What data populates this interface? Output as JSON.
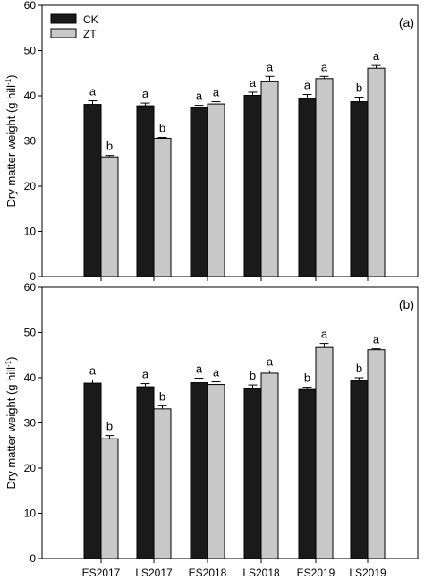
{
  "colors": {
    "CK": "#1a1a1a",
    "ZT": "#c8c8c8"
  },
  "chart_data": [
    {
      "type": "bar",
      "panel_label": "(a)",
      "ylabel_main": "Dry matter weight (g hill",
      "ylabel_sup": "-1",
      "ylabel_close": ")",
      "ylim": [
        0,
        60
      ],
      "yticks": [
        "0",
        "10",
        "20",
        "30",
        "40",
        "50",
        "60"
      ],
      "legend": {
        "placement": "top-left",
        "entries": [
          "CK",
          "ZT"
        ]
      },
      "categories": [
        "ES2017",
        "LS2017",
        "ES2018",
        "LS2018",
        "ES2019",
        "LS2019"
      ],
      "series": [
        {
          "name": "CK",
          "values": [
            38.1,
            37.8,
            37.4,
            40.1,
            39.3,
            38.7
          ],
          "errors": [
            0.8,
            0.6,
            0.5,
            0.7,
            1.0,
            1.0
          ],
          "letters": [
            "a",
            "a",
            "a",
            "a",
            "a",
            "b"
          ]
        },
        {
          "name": "ZT",
          "values": [
            26.5,
            30.6,
            38.2,
            43.1,
            43.8,
            46.1
          ],
          "errors": [
            0.3,
            0.2,
            0.5,
            1.2,
            0.5,
            0.6
          ],
          "letters": [
            "b",
            "b",
            "a",
            "a",
            "a",
            "a"
          ]
        }
      ]
    },
    {
      "type": "bar",
      "panel_label": "(b)",
      "ylabel_main": "Dry matter weight (g hill",
      "ylabel_sup": "-1",
      "ylabel_close": ")",
      "ylim": [
        0,
        60
      ],
      "yticks": [
        "0",
        "10",
        "20",
        "30",
        "40",
        "50",
        "60"
      ],
      "xtick_labels": [
        "ES2017",
        "LS2017",
        "ES2018",
        "LS2018",
        "ES2019",
        "LS2019"
      ],
      "categories": [
        "ES2017",
        "LS2017",
        "ES2018",
        "LS2018",
        "ES2019",
        "LS2019"
      ],
      "series": [
        {
          "name": "CK",
          "values": [
            38.8,
            38.0,
            38.9,
            37.6,
            37.4,
            39.4
          ],
          "errors": [
            0.7,
            0.7,
            1.0,
            0.8,
            0.5,
            0.6
          ],
          "letters": [
            "a",
            "a",
            "a",
            "b",
            "b",
            "b"
          ]
        },
        {
          "name": "ZT",
          "values": [
            26.5,
            33.1,
            38.5,
            41.0,
            46.7,
            46.2
          ],
          "errors": [
            0.7,
            0.7,
            0.6,
            0.5,
            0.9,
            0.2
          ],
          "letters": [
            "b",
            "b",
            "a",
            "a",
            "a",
            "a"
          ]
        }
      ]
    }
  ]
}
